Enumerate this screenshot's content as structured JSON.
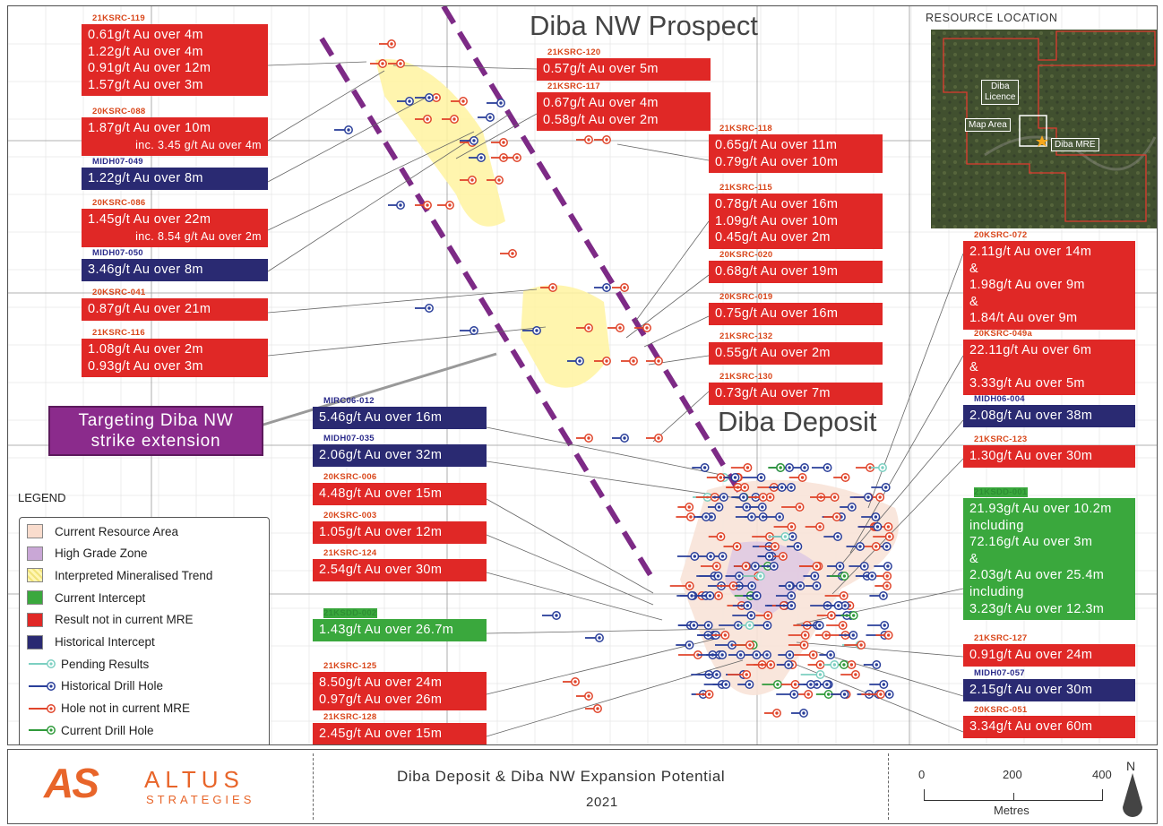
{
  "title_prospect": "Diba NW Prospect",
  "title_deposit": "Diba Deposit",
  "target_label": "Targeting Diba NW strike extension",
  "target_lines": [
    "Targeting Diba NW",
    "strike extension"
  ],
  "inset": {
    "title": "RESOURCE LOCATION",
    "licence_line1": "Diba",
    "licence_line2": "Licence",
    "map_area": "Map Area",
    "diba_mre": "Diba MRE"
  },
  "boxes": [
    {
      "id": "21KSRC-119",
      "color": "red",
      "lines": [
        "0.61g/t Au over 4m",
        "1.22g/t Au over 4m",
        "0.91g/t Au over 12m",
        "1.57g/t Au over 3m"
      ]
    },
    {
      "id": "20KSRC-088",
      "color": "red",
      "lines": [
        "1.87g/t Au over 10m",
        "inc. 3.45 g/t Au over 4m"
      ]
    },
    {
      "id": "MIDH07-049",
      "color": "navy",
      "lines": [
        "1.22g/t Au over 8m"
      ]
    },
    {
      "id": "20KSRC-086",
      "color": "red",
      "lines": [
        "1.45g/t Au over 22m",
        "inc. 8.54 g/t Au over 2m"
      ]
    },
    {
      "id": "MIDH07-050",
      "color": "navy",
      "lines": [
        "3.46g/t Au over 8m"
      ]
    },
    {
      "id": "20KSRC-041",
      "color": "red",
      "lines": [
        "0.87g/t Au over 21m"
      ]
    },
    {
      "id": "21KSRC-116",
      "color": "red",
      "lines": [
        "1.08g/t Au over 2m",
        "0.93g/t Au over 3m"
      ]
    },
    {
      "id": "21KSRC-120",
      "color": "red",
      "lines": [
        "0.57g/t Au over 5m"
      ]
    },
    {
      "id": "21KSRC-117",
      "color": "red",
      "lines": [
        "0.67g/t Au over 4m",
        "0.58g/t Au over 2m"
      ]
    },
    {
      "id": "21KSRC-118",
      "color": "red",
      "lines": [
        "0.65g/t Au over 11m",
        "0.79g/t Au over 10m"
      ]
    },
    {
      "id": "21KSRC-115",
      "color": "red",
      "lines": [
        "0.78g/t Au over 16m",
        "1.09g/t Au over 10m",
        "0.45g/t Au over 2m"
      ]
    },
    {
      "id": "20KSRC-020",
      "color": "red",
      "lines": [
        "0.68g/t Au over 19m"
      ]
    },
    {
      "id": "20KSRC-019",
      "color": "red",
      "lines": [
        "0.75g/t Au over 16m"
      ]
    },
    {
      "id": "21KSRC-132",
      "color": "red",
      "lines": [
        "0.55g/t Au over 2m"
      ]
    },
    {
      "id": "21KSRC-130",
      "color": "red",
      "lines": [
        "0.73g/t Au over 7m"
      ]
    },
    {
      "id": "MIRC06-012",
      "color": "navy",
      "lines": [
        "5.46g/t Au over 16m"
      ]
    },
    {
      "id": "MIDH07-035",
      "color": "navy",
      "lines": [
        "2.06g/t Au over 32m"
      ]
    },
    {
      "id": "20KSRC-006",
      "color": "red",
      "lines": [
        "4.48g/t Au over 15m"
      ]
    },
    {
      "id": "20KSRC-003",
      "color": "red",
      "lines": [
        "1.05g/t Au over 12m"
      ]
    },
    {
      "id": "21KSRC-124",
      "color": "red",
      "lines": [
        "2.54g/t Au over 30m"
      ]
    },
    {
      "id": "21KSDD-002",
      "color": "green",
      "lines": [
        "1.43g/t Au over 26.7m"
      ]
    },
    {
      "id": "21KSRC-125",
      "color": "red",
      "lines": [
        "8.50g/t Au over 24m",
        "0.97g/t Au over 26m"
      ]
    },
    {
      "id": "21KSRC-128",
      "color": "red",
      "lines": [
        "2.45g/t Au over 15m"
      ]
    },
    {
      "id": "20KSRC-072",
      "color": "red",
      "lines": [
        "2.11g/t Au over 14m",
        "&",
        "1.98g/t Au over 9m",
        "&",
        "1.84/t Au over 9m"
      ]
    },
    {
      "id": "20KSRC-049a",
      "color": "red",
      "lines": [
        "22.11g/t Au over 6m",
        "&",
        "3.33g/t Au over 5m"
      ]
    },
    {
      "id": "MIDH06-004",
      "color": "navy",
      "lines": [
        "2.08g/t Au over 38m"
      ]
    },
    {
      "id": "21KSRC-123",
      "color": "red",
      "lines": [
        "1.30g/t Au over 30m"
      ]
    },
    {
      "id": "21KSDD-001",
      "color": "green",
      "lines": [
        "21.93g/t Au over 10.2m",
        "including",
        "72.16g/t Au over 3m",
        "&",
        "2.03g/t Au over 25.4m",
        "including",
        "3.23g/t Au over 12.3m"
      ]
    },
    {
      "id": "21KSRC-127",
      "color": "red",
      "lines": [
        "0.91g/t Au over 24m"
      ]
    },
    {
      "id": "MIDH07-057",
      "color": "navy",
      "lines": [
        "2.15g/t Au over 30m"
      ]
    },
    {
      "id": "20KSRC-051",
      "color": "red",
      "lines": [
        "3.34g/t Au over 60m"
      ]
    }
  ],
  "legend": {
    "title": "LEGEND",
    "items": [
      {
        "label": "Current Resource Area",
        "swatch": "#f9dccd"
      },
      {
        "label": "High Grade Zone",
        "swatch": "#c9a7d6"
      },
      {
        "label": "Interpreted Mineralised Trend",
        "swatch": "#fff6b3"
      },
      {
        "label": "Current Intercept",
        "swatch": "#3aa83d"
      },
      {
        "label": "Result not in current MRE",
        "swatch": "#e02826"
      },
      {
        "label": "Historical Intercept",
        "swatch": "#2a2a72"
      },
      {
        "label": "Pending Results",
        "line": "#7ccfc1"
      },
      {
        "label": "Historical Drill Hole",
        "line": "#2a3f9a"
      },
      {
        "label": "Hole not in current MRE",
        "line": "#e0452b"
      },
      {
        "label": "Current Drill Hole",
        "line": "#2f9a3a"
      }
    ]
  },
  "footer": {
    "logo_initials": "AS",
    "logo_line1": "ALTUS",
    "logo_line2": "STRATEGIES",
    "title": "Diba Deposit & Diba NW Expansion Potential",
    "year": "2021",
    "scale_ticks": [
      "0",
      "200",
      "400"
    ],
    "scale_unit": "Metres",
    "north": "N"
  },
  "colors": {
    "red": "#e02826",
    "navy": "#2a2a72",
    "green": "#3aa83d",
    "purple": "#8b2b8c"
  }
}
